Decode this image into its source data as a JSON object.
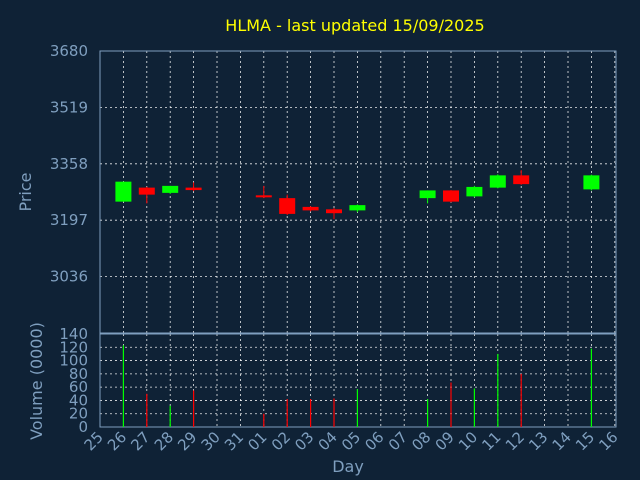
{
  "chart_data": {
    "type": "candlestick",
    "title": "HLMA - last updated 15/09/2025",
    "price_panel": {
      "ylabel": "Price",
      "yticks": [
        "3680",
        "3519",
        "3358",
        "3197",
        "3036"
      ],
      "ylim": [
        2875,
        3680
      ],
      "grid": true
    },
    "volume_panel": {
      "ylabel": "Volume (0000)",
      "yticks": [
        "140",
        "120",
        "100",
        "80",
        "60",
        "40",
        "20",
        "0"
      ],
      "ylim": [
        0,
        140
      ],
      "grid": true
    },
    "xlabel": "Day",
    "x_ticks": [
      "25",
      "26",
      "27",
      "28",
      "29",
      "30",
      "31",
      "01",
      "02",
      "03",
      "04",
      "05",
      "06",
      "07",
      "08",
      "09",
      "10",
      "11",
      "12",
      "13",
      "14",
      "15",
      "16"
    ],
    "colors": {
      "up": "#00ff00",
      "down": "#ff0000",
      "title": "#ffff00",
      "axis_text": "#7f9fbf",
      "background": "#0f2236"
    },
    "candles": [
      {
        "day": "26",
        "open": 3250,
        "close": 3307,
        "high": 3307,
        "low": 3250,
        "volume": 123
      },
      {
        "day": "27",
        "open": 3290,
        "close": 3270,
        "high": 3292,
        "low": 3245,
        "volume": 50
      },
      {
        "day": "28",
        "open": 3275,
        "close": 3295,
        "high": 3295,
        "low": 3272,
        "volume": 32
      },
      {
        "day": "29",
        "open": 3290,
        "close": 3283,
        "high": 3305,
        "low": 3280,
        "volume": 55
      },
      {
        "day": "01",
        "open": 3268,
        "close": 3263,
        "high": 3295,
        "low": 3260,
        "volume": 20
      },
      {
        "day": "02",
        "open": 3260,
        "close": 3215,
        "high": 3270,
        "low": 3212,
        "volume": 42
      },
      {
        "day": "03",
        "open": 3235,
        "close": 3225,
        "high": 3237,
        "low": 3222,
        "volume": 42
      },
      {
        "day": "04",
        "open": 3228,
        "close": 3217,
        "high": 3232,
        "low": 3200,
        "volume": 43
      },
      {
        "day": "05",
        "open": 3225,
        "close": 3240,
        "high": 3242,
        "low": 3220,
        "volume": 57
      },
      {
        "day": "08",
        "open": 3260,
        "close": 3282,
        "high": 3282,
        "low": 3245,
        "volume": 42
      },
      {
        "day": "09",
        "open": 3282,
        "close": 3250,
        "high": 3283,
        "low": 3248,
        "volume": 67
      },
      {
        "day": "10",
        "open": 3265,
        "close": 3292,
        "high": 3295,
        "low": 3262,
        "volume": 58
      },
      {
        "day": "11",
        "open": 3290,
        "close": 3325,
        "high": 3328,
        "low": 3288,
        "volume": 110
      },
      {
        "day": "12",
        "open": 3325,
        "close": 3300,
        "high": 3340,
        "low": 3298,
        "volume": 80
      },
      {
        "day": "15",
        "open": 3285,
        "close": 3325,
        "high": 3327,
        "low": 3282,
        "volume": 118
      }
    ]
  }
}
